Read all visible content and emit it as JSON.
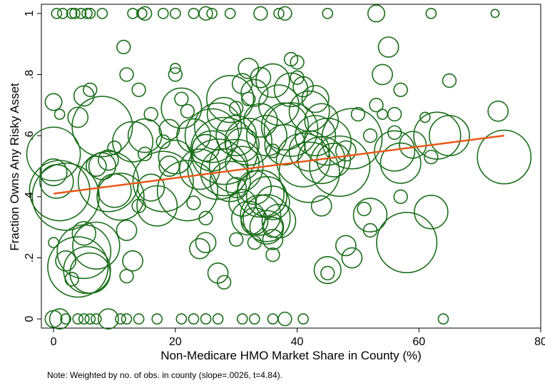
{
  "chart_data": {
    "type": "scatter",
    "title": "",
    "xlabel": "Non-Medicare HMO Market Share in County (%)",
    "ylabel": "Fraction Owns Any Risky Asset",
    "xlim": [
      -2,
      80
    ],
    "ylim": [
      -0.03,
      1.03
    ],
    "x_ticks": [
      0,
      20,
      40,
      60,
      80
    ],
    "x_tick_labels": [
      "0",
      "20",
      "40",
      "60",
      "80"
    ],
    "y_ticks": [
      0,
      0.2,
      0.4,
      0.6,
      0.8,
      1
    ],
    "y_tick_labels": [
      "0",
      ".2",
      ".4",
      ".6",
      ".8",
      "1"
    ],
    "grid": false,
    "legend": "none",
    "marker": "hollow-circle",
    "marker_size_meaning": "weighted by no. of obs. in county",
    "series": [
      {
        "kind": "scatter",
        "color": "#1a6e1a",
        "points": [
          [
            0.5,
            1,
            1.5
          ],
          [
            1.5,
            1,
            1.5
          ],
          [
            3,
            1,
            1.5
          ],
          [
            3.5,
            1,
            1.5
          ],
          [
            4.5,
            1,
            1.5
          ],
          [
            5.5,
            1,
            1.5
          ],
          [
            6,
            1,
            1.5
          ],
          [
            8,
            1,
            1.5
          ],
          [
            13,
            1,
            1.5
          ],
          [
            14.5,
            1,
            1.5
          ],
          [
            15,
            1,
            2
          ],
          [
            18,
            1,
            1.5
          ],
          [
            20,
            1,
            1.5
          ],
          [
            23,
            1,
            1.5
          ],
          [
            25,
            1,
            2
          ],
          [
            26,
            1,
            1.5
          ],
          [
            29,
            1,
            1.5
          ],
          [
            34,
            1,
            2
          ],
          [
            37,
            1,
            1.5
          ],
          [
            38,
            1,
            2
          ],
          [
            45,
            1,
            1.5
          ],
          [
            53,
            1,
            2.5
          ],
          [
            62,
            1,
            1.5
          ],
          [
            72.5,
            1,
            1.2
          ],
          [
            0,
            0,
            2.5
          ],
          [
            1,
            0,
            3
          ],
          [
            2,
            0,
            1.5
          ],
          [
            4,
            0,
            1.5
          ],
          [
            5,
            0,
            1.5
          ],
          [
            6,
            0,
            1.5
          ],
          [
            7,
            0,
            1.5
          ],
          [
            9,
            0,
            3
          ],
          [
            11,
            0,
            1.5
          ],
          [
            12,
            0,
            1.5
          ],
          [
            14,
            0,
            1.5
          ],
          [
            17,
            0,
            1.5
          ],
          [
            21,
            0,
            1.5
          ],
          [
            23,
            0,
            1.5
          ],
          [
            25,
            0,
            1.5
          ],
          [
            27,
            0,
            1.5
          ],
          [
            31,
            0,
            1.5
          ],
          [
            33,
            0,
            1.5
          ],
          [
            36,
            0,
            1.5
          ],
          [
            38,
            0,
            2
          ],
          [
            41,
            0,
            1.5
          ],
          [
            64,
            0,
            1.5
          ],
          [
            0,
            0.54,
            8
          ],
          [
            0,
            0.48,
            4
          ],
          [
            0.5,
            0.45,
            5
          ],
          [
            1,
            0.42,
            9
          ],
          [
            2,
            0.4,
            10
          ],
          [
            0,
            0.71,
            2.5
          ],
          [
            1,
            0.67,
            1.5
          ],
          [
            0,
            0.25,
            1.5
          ],
          [
            3,
            0.13,
            2
          ],
          [
            2,
            0.19,
            3
          ],
          [
            4,
            0.66,
            3
          ],
          [
            5,
            0.73,
            3
          ],
          [
            6,
            0.75,
            2
          ],
          [
            5,
            0.28,
            3.5
          ],
          [
            4,
            0.17,
            9
          ],
          [
            5,
            0.22,
            8
          ],
          [
            5.5,
            0.16,
            7
          ],
          [
            6,
            0.15,
            6
          ],
          [
            7,
            0.24,
            7
          ],
          [
            8,
            0.63,
            9
          ],
          [
            7,
            0.5,
            3
          ],
          [
            8,
            0.5,
            4
          ],
          [
            9,
            0.45,
            9
          ],
          [
            10,
            0.42,
            5
          ],
          [
            11,
            0.4,
            7
          ],
          [
            10,
            0.56,
            2
          ],
          [
            9,
            0.52,
            3
          ],
          [
            12,
            0.29,
            3
          ],
          [
            12,
            0.14,
            2
          ],
          [
            13,
            0.19,
            3
          ],
          [
            14,
            0.37,
            2
          ],
          [
            12,
            0.8,
            2
          ],
          [
            11.5,
            0.89,
            2
          ],
          [
            13,
            0.58,
            6
          ],
          [
            15,
            0.6,
            5
          ],
          [
            14,
            0.75,
            2
          ],
          [
            16,
            0.67,
            2
          ],
          [
            15,
            0.54,
            2
          ],
          [
            16,
            0.43,
            4
          ],
          [
            17,
            0.37,
            6
          ],
          [
            18,
            0.45,
            9
          ],
          [
            19,
            0.5,
            3
          ],
          [
            18,
            0.58,
            2
          ],
          [
            20,
            0.53,
            5
          ],
          [
            19,
            0.62,
            3
          ],
          [
            21,
            0.69,
            6
          ],
          [
            20,
            0.82,
            1.5
          ],
          [
            20,
            0.8,
            2
          ],
          [
            21,
            0.72,
            2
          ],
          [
            22,
            0.68,
            2
          ],
          [
            22,
            0.42,
            9
          ],
          [
            23,
            0.6,
            5
          ],
          [
            24,
            0.49,
            6
          ],
          [
            23,
            0.38,
            2
          ],
          [
            24,
            0.23,
            3
          ],
          [
            25,
            0.25,
            3
          ],
          [
            25,
            0.33,
            2
          ],
          [
            25,
            0.56,
            4
          ],
          [
            26,
            0.55,
            6
          ],
          [
            26,
            0.6,
            8
          ],
          [
            27,
            0.49,
            9
          ],
          [
            27,
            0.63,
            7
          ],
          [
            28,
            0.55,
            10
          ],
          [
            29,
            0.45,
            6
          ],
          [
            28,
            0.67,
            5
          ],
          [
            28,
            0.48,
            7
          ],
          [
            30,
            0.5,
            8
          ],
          [
            29,
            0.72,
            7
          ],
          [
            30,
            0.6,
            6
          ],
          [
            31,
            0.57,
            5
          ],
          [
            31,
            0.51,
            5
          ],
          [
            32,
            0.58,
            7
          ],
          [
            33,
            0.74,
            4
          ],
          [
            34,
            0.79,
            3
          ],
          [
            32,
            0.82,
            3
          ],
          [
            34,
            0.65,
            5
          ],
          [
            35,
            0.6,
            6
          ],
          [
            36,
            0.78,
            5
          ],
          [
            37,
            0.7,
            6
          ],
          [
            36,
            0.55,
            2
          ],
          [
            38,
            0.57,
            6
          ],
          [
            39,
            0.62,
            8
          ],
          [
            39,
            0.75,
            5
          ],
          [
            40,
            0.84,
            2
          ],
          [
            38,
            0.63,
            7
          ],
          [
            41,
            0.52,
            8
          ],
          [
            42,
            0.55,
            6
          ],
          [
            42,
            0.48,
            9
          ],
          [
            43,
            0.6,
            6
          ],
          [
            44,
            0.52,
            7
          ],
          [
            45,
            0.58,
            7
          ],
          [
            46,
            0.52,
            5
          ],
          [
            47,
            0.5,
            9
          ],
          [
            48,
            0.55,
            3
          ],
          [
            49,
            0.59,
            9
          ],
          [
            33,
            0.43,
            5
          ],
          [
            34,
            0.41,
            7
          ],
          [
            35,
            0.4,
            6
          ],
          [
            36,
            0.38,
            5
          ],
          [
            34,
            0.34,
            6
          ],
          [
            35,
            0.33,
            7
          ],
          [
            35,
            0.3,
            5
          ],
          [
            36,
            0.3,
            3
          ],
          [
            37,
            0.32,
            5
          ],
          [
            33,
            0.32,
            4
          ],
          [
            32,
            0.33,
            5
          ],
          [
            31,
            0.38,
            4
          ],
          [
            30,
            0.43,
            3
          ],
          [
            36,
            0.21,
            2
          ],
          [
            33,
            0.25,
            2
          ],
          [
            36,
            0.26,
            3
          ],
          [
            27,
            0.15,
            3
          ],
          [
            28,
            0.12,
            2
          ],
          [
            30,
            0.26,
            2
          ],
          [
            44,
            0.37,
            3
          ],
          [
            45,
            0.15,
            2
          ],
          [
            45,
            0.16,
            4
          ],
          [
            48,
            0.24,
            3
          ],
          [
            49,
            0.2,
            3
          ],
          [
            52,
            0.34,
            5
          ],
          [
            51,
            0.36,
            2
          ],
          [
            52,
            0.29,
            2
          ],
          [
            50,
            0.67,
            2
          ],
          [
            53,
            0.7,
            2
          ],
          [
            54,
            0.67,
            1.5
          ],
          [
            54,
            0.8,
            3
          ],
          [
            55,
            0.89,
            3
          ],
          [
            56,
            0.61,
            2
          ],
          [
            56,
            0.55,
            6
          ],
          [
            57,
            0.51,
            6
          ],
          [
            57,
            0.4,
            2
          ],
          [
            58,
            0.25,
            9
          ],
          [
            59,
            0.57,
            4
          ],
          [
            61,
            0.66,
            1.5
          ],
          [
            62,
            0.53,
            2
          ],
          [
            62,
            0.35,
            5
          ],
          [
            63,
            0.6,
            7
          ],
          [
            65,
            0.6,
            6
          ],
          [
            65,
            0.78,
            2
          ],
          [
            73,
            0.68,
            3
          ],
          [
            74,
            0.53,
            8
          ],
          [
            57,
            0.75,
            2
          ],
          [
            56,
            0.67,
            2
          ],
          [
            52,
            0.6,
            2
          ],
          [
            44,
            0.65,
            5
          ],
          [
            42,
            0.68,
            6
          ],
          [
            43,
            0.72,
            4
          ],
          [
            41,
            0.76,
            3
          ],
          [
            40,
            0.79,
            2
          ],
          [
            39,
            0.85,
            2
          ],
          [
            31,
            0.77,
            3
          ],
          [
            32,
            0.72,
            2
          ],
          [
            30,
            0.69,
            2
          ]
        ]
      },
      {
        "kind": "fit-line",
        "color": "#e8581b",
        "points": [
          [
            0,
            0.41
          ],
          [
            74,
            0.6
          ]
        ]
      }
    ]
  },
  "note": "Note: Weighted by no. of obs. in county (slope=.0026, t=4.84)."
}
